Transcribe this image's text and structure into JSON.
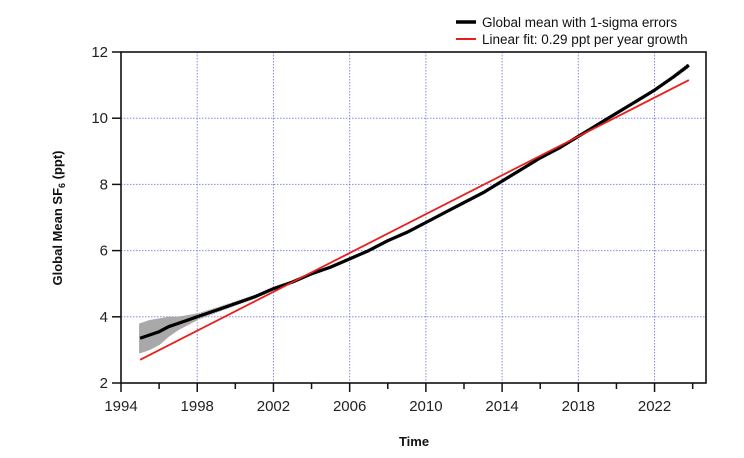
{
  "chart_data": {
    "type": "line",
    "title": "",
    "xlabel": "Time",
    "ylabel_main": "Global Mean SF",
    "ylabel_sub": "6",
    "ylabel_unit": " (ppt)",
    "xlim": [
      1994,
      2024.7
    ],
    "ylim": [
      2,
      12
    ],
    "grid": true,
    "legend_position": "top-right",
    "x_major_ticks": [
      1994,
      1998,
      2002,
      2006,
      2010,
      2014,
      2018,
      2022
    ],
    "x_major_tick_labels": [
      "1994",
      "1998",
      "2002",
      "2006",
      "2010",
      "2014",
      "2018",
      "2022"
    ],
    "x_minor_ticks": [
      1996,
      2000,
      2004,
      2008,
      2012,
      2016,
      2020,
      2024
    ],
    "y_ticks": [
      2,
      4,
      6,
      8,
      10,
      12
    ],
    "y_tick_labels": [
      "2",
      "4",
      "6",
      "8",
      "10",
      "12"
    ],
    "series": [
      {
        "name": "Global mean with 1-sigma errors",
        "color": "#000000",
        "error_color": "#a9a9a9",
        "x": [
          1995.0,
          1995.5,
          1996.0,
          1996.5,
          1997.0,
          1997.5,
          1998.0,
          1999.0,
          2000.0,
          2001.0,
          2002.0,
          2003.0,
          2004.0,
          2005.0,
          2006.0,
          2007.0,
          2008.0,
          2009.0,
          2010.0,
          2011.0,
          2012.0,
          2013.0,
          2014.0,
          2015.0,
          2016.0,
          2017.0,
          2018.0,
          2019.0,
          2020.0,
          2021.0,
          2022.0,
          2023.0,
          2023.8
        ],
        "values": [
          3.35,
          3.45,
          3.55,
          3.7,
          3.8,
          3.9,
          4.0,
          4.2,
          4.4,
          4.6,
          4.85,
          5.05,
          5.3,
          5.5,
          5.75,
          6.0,
          6.3,
          6.55,
          6.85,
          7.15,
          7.45,
          7.75,
          8.1,
          8.45,
          8.8,
          9.1,
          9.45,
          9.8,
          10.15,
          10.5,
          10.85,
          11.25,
          11.6
        ],
        "errors": [
          0.45,
          0.45,
          0.4,
          0.3,
          0.2,
          0.15,
          0.1,
          0.08,
          0.07,
          0.06,
          0.06,
          0.05,
          0.05,
          0.05,
          0.05,
          0.05,
          0.05,
          0.05,
          0.05,
          0.05,
          0.05,
          0.05,
          0.05,
          0.05,
          0.05,
          0.05,
          0.05,
          0.05,
          0.05,
          0.05,
          0.05,
          0.06,
          0.08
        ]
      },
      {
        "name": "Linear fit: 0.29 ppt per year growth",
        "color": "#e8201c",
        "x": [
          1995.0,
          2023.8
        ],
        "values": [
          2.7,
          11.15
        ]
      }
    ]
  }
}
